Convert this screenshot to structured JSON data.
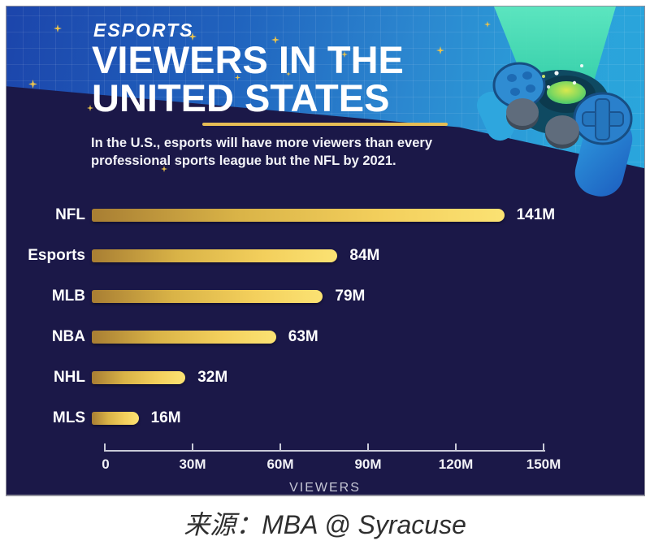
{
  "header": {
    "kicker": "ESPORTS",
    "title": "VIEWERS IN THE\nUNITED STATES",
    "subtitle": "In the U.S., esports will have more viewers than every\nprofessional sports league but the NFL by 2021."
  },
  "chart_data": {
    "type": "bar",
    "orientation": "horizontal",
    "title": "Esports viewers in the United States",
    "categories": [
      "NFL",
      "Esports",
      "MLB",
      "NBA",
      "NHL",
      "MLS"
    ],
    "values": [
      141,
      84,
      79,
      63,
      32,
      16
    ],
    "value_labels": [
      "141M",
      "84M",
      "79M",
      "63M",
      "32M",
      "16M"
    ],
    "xlabel": "VIEWERS",
    "xlim": [
      0,
      150
    ],
    "x_ticks": [
      0,
      30,
      60,
      90,
      120,
      150
    ],
    "x_tick_labels": [
      "0",
      "30M",
      "60M",
      "90M",
      "120M",
      "150M"
    ],
    "grid": false,
    "bar_color_start": "#a87e33",
    "bar_color_end": "#fbe273",
    "background": "#1b1848",
    "label_color": "#ffffff"
  },
  "caption": "来源：MBA @ Syracuse",
  "colors": {
    "header_blue_left": "#1c45ab",
    "header_blue_right": "#2aa6dc",
    "beam_teal": "#3ed8a8",
    "navy_body": "#1b1848",
    "gold_accent": "#e6bd55",
    "text_white": "#ffffff"
  }
}
